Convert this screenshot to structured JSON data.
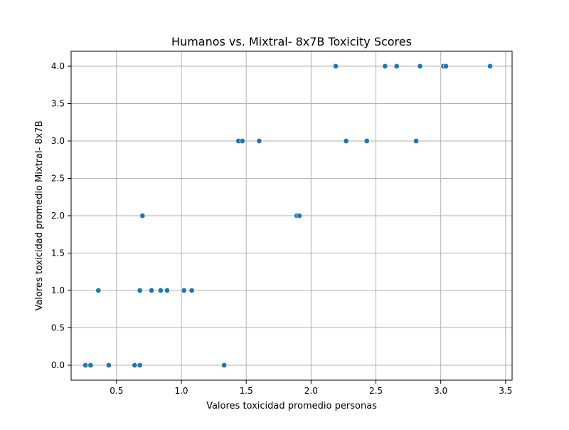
{
  "chart_data": {
    "type": "scatter",
    "title": "Humanos vs. Mixtral- 8x7B Toxicity Scores",
    "xlabel": "Valores toxicidad promedio personas",
    "ylabel": "Valores toxicidad promedio Mixtral- 8x7B",
    "xlim": [
      0.15,
      3.55
    ],
    "ylim": [
      -0.2,
      4.2
    ],
    "xticks": [
      0.5,
      1.0,
      1.5,
      2.0,
      2.5,
      3.0,
      3.5
    ],
    "xtick_labels": [
      "0.5",
      "1.0",
      "1.5",
      "2.0",
      "2.5",
      "3.0",
      "3.5"
    ],
    "yticks": [
      0.0,
      0.5,
      1.0,
      1.5,
      2.0,
      2.5,
      3.0,
      3.5,
      4.0
    ],
    "ytick_labels": [
      "0.0",
      "0.5",
      "1.0",
      "1.5",
      "2.0",
      "2.5",
      "3.0",
      "3.5",
      "4.0"
    ],
    "grid": true,
    "point_color": "#1f77b4",
    "points": [
      {
        "x": 0.26,
        "y": 0.0
      },
      {
        "x": 0.3,
        "y": 0.0
      },
      {
        "x": 0.44,
        "y": 0.0
      },
      {
        "x": 0.64,
        "y": 0.0
      },
      {
        "x": 0.68,
        "y": 0.0
      },
      {
        "x": 1.33,
        "y": 0.0
      },
      {
        "x": 0.36,
        "y": 1.0
      },
      {
        "x": 0.68,
        "y": 1.0
      },
      {
        "x": 0.77,
        "y": 1.0
      },
      {
        "x": 0.84,
        "y": 1.0
      },
      {
        "x": 0.89,
        "y": 1.0
      },
      {
        "x": 1.02,
        "y": 1.0
      },
      {
        "x": 1.08,
        "y": 1.0
      },
      {
        "x": 0.7,
        "y": 2.0
      },
      {
        "x": 1.89,
        "y": 2.0
      },
      {
        "x": 1.91,
        "y": 2.0
      },
      {
        "x": 1.44,
        "y": 3.0
      },
      {
        "x": 1.47,
        "y": 3.0
      },
      {
        "x": 1.6,
        "y": 3.0
      },
      {
        "x": 2.27,
        "y": 3.0
      },
      {
        "x": 2.43,
        "y": 3.0
      },
      {
        "x": 2.81,
        "y": 3.0
      },
      {
        "x": 2.19,
        "y": 4.0
      },
      {
        "x": 2.57,
        "y": 4.0
      },
      {
        "x": 2.66,
        "y": 4.0
      },
      {
        "x": 2.84,
        "y": 4.0
      },
      {
        "x": 3.02,
        "y": 4.0
      },
      {
        "x": 3.04,
        "y": 4.0
      },
      {
        "x": 3.38,
        "y": 4.0
      }
    ]
  }
}
